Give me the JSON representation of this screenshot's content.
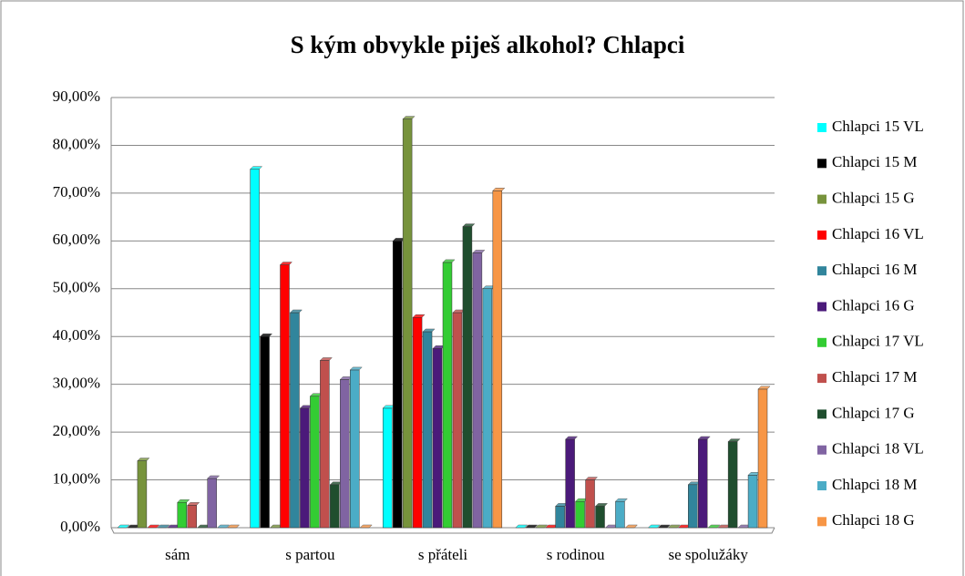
{
  "chart_data": {
    "type": "bar",
    "title": "S kým obvykle piješ alkohol? Chlapci",
    "categories": [
      "sám",
      "s partou",
      "s přáteli",
      "s rodinou",
      "se spolužáky"
    ],
    "series": [
      {
        "name": "Chlapci 15 VL",
        "color": "#00ffff",
        "values": [
          0,
          75,
          25,
          0,
          0
        ]
      },
      {
        "name": "Chlapci 15 M",
        "color": "#000000",
        "values": [
          0,
          40,
          60,
          0,
          0
        ]
      },
      {
        "name": "Chlapci 15 G",
        "color": "#77933c",
        "values": [
          14,
          0,
          85.5,
          0,
          0
        ]
      },
      {
        "name": "Chlapci 16 VL",
        "color": "#ff0000",
        "values": [
          0,
          55,
          44,
          0,
          0
        ]
      },
      {
        "name": "Chlapci 16 M",
        "color": "#31859c",
        "values": [
          0,
          45,
          41,
          4.5,
          9
        ]
      },
      {
        "name": "Chlapci 16 G",
        "color": "#4b1a7a",
        "values": [
          0,
          25,
          37.5,
          18.5,
          18.5
        ]
      },
      {
        "name": "Chlapci 17 VL",
        "color": "#33cc33",
        "values": [
          5.3,
          27.5,
          55.5,
          5.5,
          0
        ]
      },
      {
        "name": "Chlapci 17 M",
        "color": "#c0504d",
        "values": [
          4.7,
          35,
          45,
          10,
          0
        ]
      },
      {
        "name": "Chlapci 17 G",
        "color": "#1f4e2e",
        "values": [
          0,
          9,
          63,
          4.5,
          18
        ]
      },
      {
        "name": "Chlapci 18 VL",
        "color": "#8064a2",
        "values": [
          10.3,
          31,
          57.5,
          0,
          0
        ]
      },
      {
        "name": "Chlapci 18 M",
        "color": "#4bacc6",
        "values": [
          0,
          33,
          50,
          5.5,
          11
        ]
      },
      {
        "name": "Chlapci 18 G",
        "color": "#f79646",
        "values": [
          0,
          0,
          70.5,
          0,
          29
        ]
      }
    ],
    "ylim": [
      0,
      90
    ],
    "yticks": [
      {
        "value": 0,
        "label": "0,00%"
      },
      {
        "value": 10,
        "label": "10,00%"
      },
      {
        "value": 20,
        "label": "20,00%"
      },
      {
        "value": 30,
        "label": "30,00%"
      },
      {
        "value": 40,
        "label": "40,00%"
      },
      {
        "value": 50,
        "label": "50,00%"
      },
      {
        "value": 60,
        "label": "60,00%"
      },
      {
        "value": 70,
        "label": "70,00%"
      },
      {
        "value": 80,
        "label": "80,00%"
      },
      {
        "value": 90,
        "label": "90,00%"
      }
    ],
    "grid": true,
    "legend": "right"
  }
}
